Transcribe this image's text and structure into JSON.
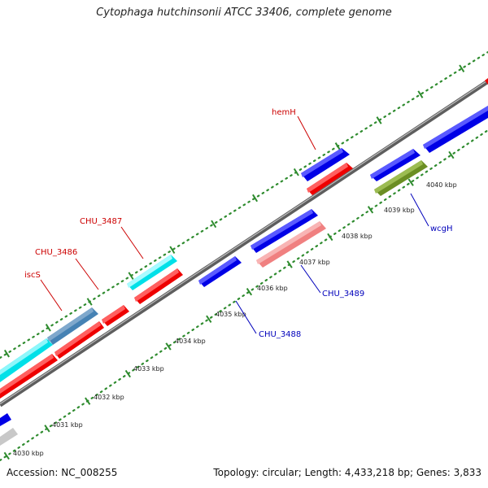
{
  "title": "Cytophaga hutchinsonii ATCC 33406, complete genome",
  "accession": "Accession: NC_008255",
  "summary": "Topology: circular; Length: 4,433,218 bp; Genes: 3,833",
  "tick_labels": [
    "4030 kbp",
    "4031 kbp",
    "4032 kbp",
    "4033 kbp",
    "4034 kbp",
    "4035 kbp",
    "4036 kbp",
    "4037 kbp",
    "4038 kbp",
    "4039 kbp",
    "4040 kbp"
  ],
  "colors": {
    "forward_cds": "#0000e6",
    "reverse_cds": "#ee0000",
    "cyan_feature": "#00e0e8",
    "steelblue_feature": "#4682b4",
    "pink_feature": "#f08080",
    "olive_feature": "#6b8e23",
    "grey_feature": "#c8c8c8",
    "backbone": "#808080",
    "ticks": "#2e8b2e",
    "label_red": "#cc0000",
    "label_blue": "#0000bb"
  },
  "labels": {
    "hemH": "hemH",
    "CHU_3487": "CHU_3487",
    "CHU_3486": "CHU_3486",
    "iscS": "iscS",
    "CHU_3489": "CHU_3489",
    "CHU_3488": "CHU_3488",
    "wcgH": "wcgH"
  }
}
